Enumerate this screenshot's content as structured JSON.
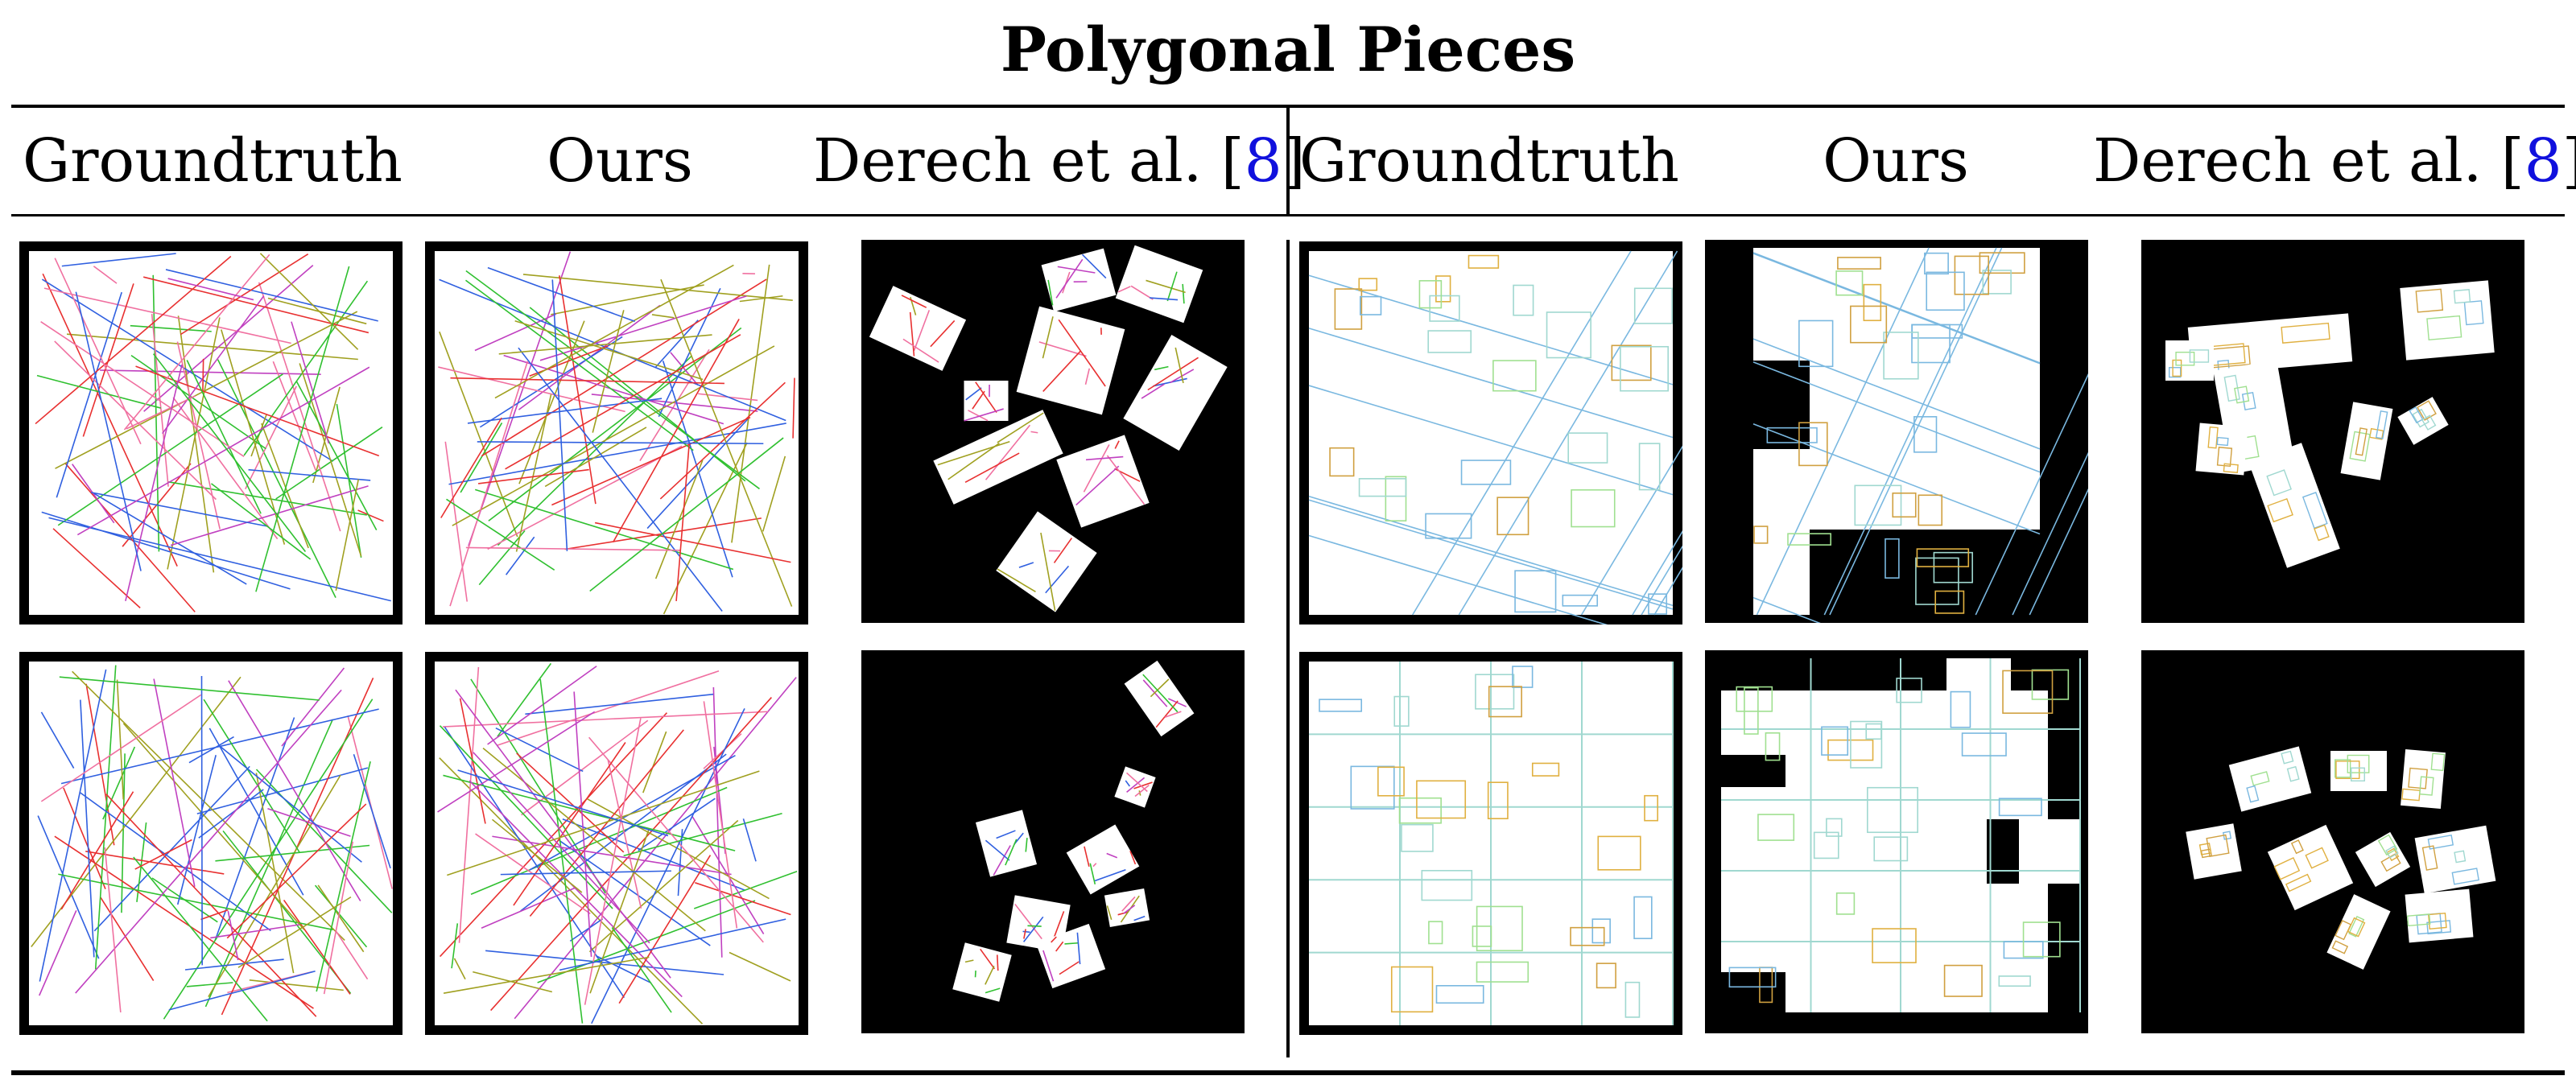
{
  "title": "Polygonal Pieces",
  "columns": [
    {
      "label": "Groundtruth"
    },
    {
      "label": "Ours"
    },
    {
      "label": "Derech et al. [",
      "cite": "8",
      "close": "]"
    },
    {
      "label": "Groundtruth"
    },
    {
      "label": "Ours"
    },
    {
      "label": "Derech et al. [",
      "cite": "8",
      "close": "]"
    }
  ],
  "colors": {
    "cite": "#1010dd",
    "line_palette": [
      "#e83030",
      "#3060e0",
      "#30c030",
      "#c040c0",
      "#a0a020",
      "#f070a0"
    ],
    "map_palette": [
      "#7ab8e0",
      "#a0d8d0",
      "#e0b040",
      "#a0e090",
      "#d0a040"
    ]
  },
  "rows": [
    {
      "panels": [
        "groundtruth-lines",
        "ours-lines",
        "derech-lines",
        "groundtruth-map",
        "ours-map",
        "derech-map"
      ]
    },
    {
      "panels": [
        "groundtruth-lines",
        "ours-lines",
        "derech-lines",
        "groundtruth-map",
        "ours-map",
        "derech-map"
      ]
    }
  ]
}
